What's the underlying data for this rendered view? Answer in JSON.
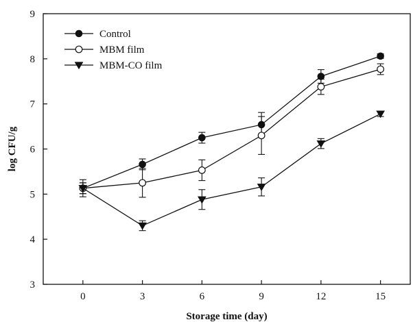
{
  "chart_data": {
    "type": "line",
    "xlabel": "Storage time (day)",
    "ylabel": "log CFU/g",
    "xlim": [
      -2,
      16.5
    ],
    "ylim": [
      3,
      9
    ],
    "x_ticks": [
      0,
      3,
      6,
      9,
      12,
      15
    ],
    "y_ticks": [
      3,
      4,
      5,
      6,
      7,
      8,
      9
    ],
    "x_tick_labels": [
      "0",
      "3",
      "6",
      "9",
      "12",
      "15"
    ],
    "y_tick_labels": [
      "3",
      "4",
      "5",
      "6",
      "7",
      "8",
      "9"
    ],
    "legend_position": "top-left",
    "grid": false,
    "series": [
      {
        "name": "Control",
        "marker": "filled-circle",
        "x": [
          0,
          3,
          6,
          9,
          12,
          15
        ],
        "y": [
          5.13,
          5.66,
          6.25,
          6.54,
          7.61,
          8.06
        ],
        "err": [
          0.12,
          0.12,
          0.12,
          0.27,
          0.15,
          0.05
        ]
      },
      {
        "name": "MBM film",
        "marker": "open-circle",
        "x": [
          0,
          3,
          6,
          9,
          12,
          15
        ],
        "y": [
          5.13,
          5.25,
          5.53,
          6.3,
          7.38,
          7.77
        ],
        "err": [
          0.12,
          0.32,
          0.23,
          0.42,
          0.17,
          0.12
        ]
      },
      {
        "name": "MBM-CO film",
        "marker": "filled-triangle-down",
        "x": [
          0,
          3,
          6,
          9,
          12,
          15
        ],
        "y": [
          5.13,
          4.3,
          4.88,
          5.16,
          6.12,
          6.78
        ],
        "err": [
          0.19,
          0.11,
          0.22,
          0.2,
          0.11,
          0.06
        ]
      }
    ]
  }
}
